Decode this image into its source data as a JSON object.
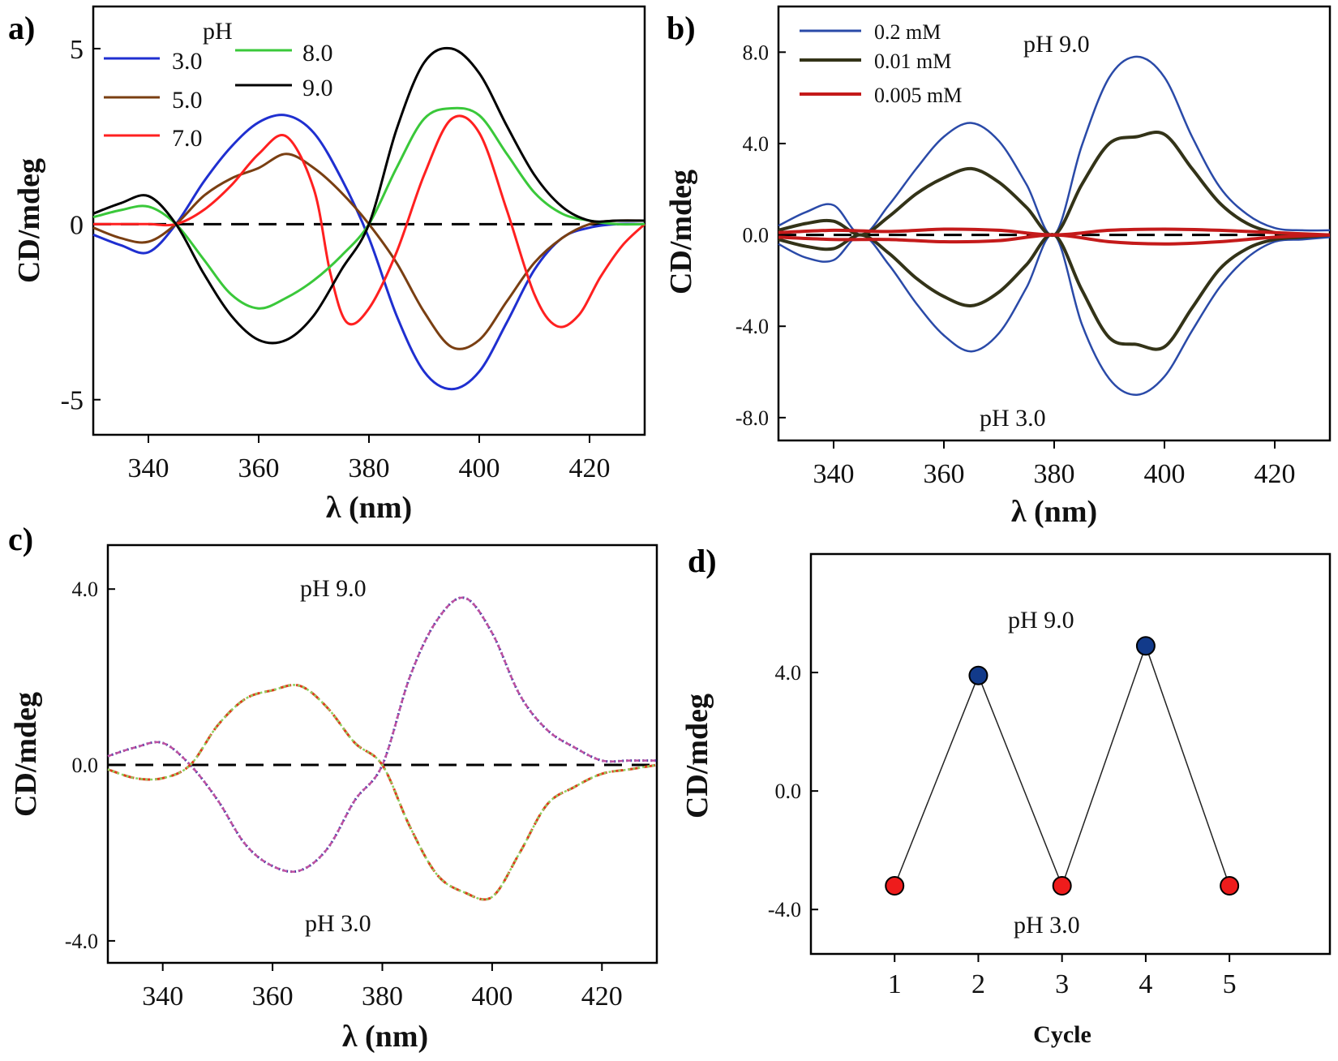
{
  "chart_data": [
    {
      "panel": "a)",
      "type": "line",
      "xlabel": "λ (nm)",
      "ylabel": "CD/mdeg",
      "xlim": [
        330,
        430
      ],
      "ylim": [
        -6,
        6.2
      ],
      "xticks": [
        340,
        360,
        380,
        400,
        420
      ],
      "yticks": [
        {
          "value": 5,
          "label": "5"
        },
        {
          "value": 0,
          "label": "0"
        },
        {
          "value": -5,
          "label": "-5"
        }
      ],
      "legend_title": "pH",
      "zero_line": true,
      "series": [
        {
          "name": "3.0",
          "color": "#1f2fd0",
          "width": 3,
          "x": [
            330,
            335,
            340,
            345,
            350,
            355,
            360,
            365,
            370,
            375,
            380,
            385,
            390,
            395,
            400,
            405,
            410,
            415,
            420,
            425,
            430
          ],
          "y": [
            -0.3,
            -0.6,
            -0.8,
            0,
            1.2,
            2.2,
            2.9,
            3.1,
            2.6,
            1.3,
            -0.4,
            -2.6,
            -4.2,
            -4.7,
            -4.2,
            -2.8,
            -1.3,
            -0.4,
            -0.1,
            0,
            0
          ]
        },
        {
          "name": "5.0",
          "color": "#7a3f12",
          "width": 3,
          "x": [
            330,
            335,
            340,
            345,
            350,
            355,
            360,
            365,
            370,
            375,
            380,
            385,
            390,
            395,
            400,
            405,
            410,
            415,
            420,
            425,
            430
          ],
          "y": [
            -0.1,
            -0.4,
            -0.5,
            0,
            0.8,
            1.3,
            1.6,
            2.0,
            1.6,
            0.9,
            0,
            -1.1,
            -2.5,
            -3.5,
            -3.3,
            -2.2,
            -1.1,
            -0.4,
            0,
            0.1,
            0.1
          ]
        },
        {
          "name": "7.0",
          "color": "#ff2020",
          "width": 3,
          "x": [
            330,
            335,
            340,
            345,
            350,
            355,
            360,
            365,
            370,
            373,
            376,
            380,
            385,
            390,
            395,
            400,
            405,
            410,
            414,
            418,
            422,
            426,
            430
          ],
          "y": [
            0,
            0,
            0,
            0,
            0.4,
            1.1,
            2.0,
            2.5,
            1.0,
            -1.4,
            -2.8,
            -2.4,
            -0.8,
            1.4,
            3.0,
            2.6,
            0.4,
            -2.0,
            -2.9,
            -2.6,
            -1.5,
            -0.6,
            0
          ]
        },
        {
          "name": "8.0",
          "color": "#3ac83a",
          "width": 3,
          "x": [
            330,
            335,
            340,
            345,
            350,
            355,
            360,
            365,
            370,
            375,
            380,
            385,
            390,
            395,
            400,
            405,
            410,
            415,
            420,
            425,
            430
          ],
          "y": [
            0.2,
            0.4,
            0.5,
            0,
            -1.0,
            -2.0,
            -2.4,
            -2.1,
            -1.6,
            -0.9,
            0,
            1.6,
            3.0,
            3.3,
            3.1,
            2.0,
            0.9,
            0.3,
            0.1,
            0,
            0
          ]
        },
        {
          "name": "9.0",
          "color": "#000000",
          "width": 3,
          "x": [
            330,
            335,
            340,
            345,
            350,
            355,
            360,
            365,
            370,
            375,
            380,
            385,
            390,
            395,
            400,
            405,
            410,
            415,
            420,
            425,
            430
          ],
          "y": [
            0.3,
            0.6,
            0.8,
            0,
            -1.4,
            -2.6,
            -3.3,
            -3.3,
            -2.6,
            -1.3,
            0,
            2.7,
            4.6,
            5.0,
            4.3,
            2.8,
            1.4,
            0.5,
            0.1,
            0.1,
            0.1
          ]
        }
      ]
    },
    {
      "panel": "b)",
      "type": "line",
      "xlabel": "λ (nm)",
      "ylabel": "CD/mdeg",
      "xlim": [
        330,
        430
      ],
      "ylim": [
        -9,
        10
      ],
      "xticks": [
        340,
        360,
        380,
        400,
        420
      ],
      "yticks": [
        {
          "value": 8,
          "label": "8.0"
        },
        {
          "value": 4,
          "label": "4.0"
        },
        {
          "value": 0,
          "label": "0.0"
        },
        {
          "value": -4,
          "label": "-4.0"
        },
        {
          "value": -8,
          "label": "-8.0"
        }
      ],
      "annotations": [
        "pH 9.0",
        "pH 3.0"
      ],
      "zero_line": true,
      "series": [
        {
          "name": "0.2 mM",
          "color": "#2a4aa8",
          "width": 2.5,
          "x": [
            330,
            335,
            340,
            345,
            350,
            355,
            360,
            365,
            370,
            375,
            380,
            385,
            390,
            395,
            400,
            405,
            410,
            415,
            420,
            425,
            430
          ],
          "y": [
            0.4,
            1.0,
            1.3,
            0,
            1.3,
            2.9,
            4.3,
            4.9,
            4.1,
            2.2,
            0,
            3.9,
            6.9,
            7.8,
            6.9,
            4.3,
            2.1,
            0.9,
            0.3,
            0.2,
            0.2
          ]
        },
        {
          "name": "0.2 mM",
          "color": "#2a4aa8",
          "width": 2.5,
          "x": [
            330,
            335,
            340,
            345,
            350,
            355,
            360,
            365,
            370,
            375,
            380,
            385,
            390,
            395,
            400,
            405,
            410,
            415,
            420,
            425,
            430
          ],
          "y": [
            -0.4,
            -1.0,
            -1.1,
            0,
            -1.3,
            -3.0,
            -4.4,
            -5.1,
            -4.3,
            -2.3,
            0,
            -3.9,
            -6.3,
            -7.0,
            -6.2,
            -4.2,
            -2.3,
            -1.0,
            -0.3,
            -0.2,
            -0.1
          ]
        },
        {
          "name": "0.01 mM",
          "color": "#333318",
          "width": 4,
          "x": [
            330,
            335,
            340,
            345,
            350,
            355,
            360,
            365,
            370,
            375,
            380,
            385,
            390,
            395,
            400,
            405,
            410,
            415,
            420,
            425,
            430
          ],
          "y": [
            0.2,
            0.5,
            0.6,
            0,
            0.8,
            1.8,
            2.5,
            2.9,
            2.3,
            1.2,
            0,
            2.2,
            4.0,
            4.3,
            4.4,
            2.9,
            1.4,
            0.5,
            0.1,
            0,
            0
          ]
        },
        {
          "name": "0.01 mM",
          "color": "#333318",
          "width": 4,
          "x": [
            330,
            335,
            340,
            345,
            350,
            355,
            360,
            365,
            370,
            375,
            380,
            385,
            390,
            395,
            400,
            405,
            410,
            415,
            420,
            425,
            430
          ],
          "y": [
            -0.2,
            -0.5,
            -0.6,
            0,
            -0.8,
            -1.9,
            -2.7,
            -3.1,
            -2.5,
            -1.3,
            0,
            -2.4,
            -4.5,
            -4.8,
            -4.9,
            -3.2,
            -1.5,
            -0.6,
            -0.2,
            -0.1,
            0
          ]
        },
        {
          "name": "0.005 mM",
          "color": "#c41a1a",
          "width": 4,
          "x": [
            330,
            340,
            350,
            360,
            370,
            380,
            390,
            400,
            410,
            420,
            430
          ],
          "y": [
            0.1,
            0.2,
            0.15,
            0.25,
            0.2,
            0,
            0.2,
            0.25,
            0.2,
            0.1,
            0
          ]
        },
        {
          "name": "0.005 mM",
          "color": "#c41a1a",
          "width": 4,
          "x": [
            330,
            340,
            350,
            360,
            370,
            380,
            390,
            400,
            410,
            420,
            430
          ],
          "y": [
            -0.1,
            -0.2,
            -0.2,
            -0.3,
            -0.25,
            0,
            -0.3,
            -0.4,
            -0.3,
            -0.1,
            0
          ]
        }
      ]
    },
    {
      "panel": "c)",
      "type": "line",
      "xlabel": "λ (nm)",
      "ylabel": "CD/mdeg",
      "xlim": [
        330,
        430
      ],
      "ylim": [
        -4.5,
        5.0
      ],
      "xticks": [
        340,
        360,
        380,
        400,
        420
      ],
      "yticks": [
        {
          "value": 4,
          "label": "4.0"
        },
        {
          "value": 0,
          "label": "0.0"
        },
        {
          "value": -4,
          "label": "-4.0"
        }
      ],
      "annotations": [
        "pH 9.0",
        "pH 3.0"
      ],
      "zero_line": true,
      "series": [
        {
          "color": "#2b3aa8",
          "width": 3,
          "dash": "2 3",
          "x": [
            330,
            335,
            340,
            345,
            350,
            355,
            360,
            365,
            370,
            375,
            380,
            385,
            390,
            395,
            400,
            405,
            410,
            415,
            420,
            425,
            430
          ],
          "y": [
            0.2,
            0.4,
            0.5,
            0,
            -0.8,
            -1.8,
            -2.3,
            -2.4,
            -1.9,
            -0.8,
            0,
            2.0,
            3.3,
            3.8,
            3.0,
            1.6,
            0.8,
            0.4,
            0.1,
            0.1,
            0.1
          ]
        },
        {
          "color": "#c050a0",
          "width": 2.5,
          "dash": "6 4",
          "x": [
            330,
            335,
            340,
            345,
            350,
            355,
            360,
            365,
            370,
            375,
            380,
            385,
            390,
            395,
            400,
            405,
            410,
            415,
            420,
            425,
            430
          ],
          "y": [
            0.2,
            0.4,
            0.5,
            0,
            -0.8,
            -1.8,
            -2.3,
            -2.4,
            -1.9,
            -0.8,
            0,
            2.0,
            3.3,
            3.8,
            3.0,
            1.6,
            0.8,
            0.4,
            0.1,
            0.1,
            0.1
          ]
        },
        {
          "color": "#e03a1a",
          "width": 3,
          "dash": "14 6",
          "x": [
            330,
            335,
            340,
            345,
            350,
            355,
            360,
            365,
            370,
            375,
            380,
            385,
            390,
            395,
            400,
            405,
            410,
            415,
            420,
            425,
            430
          ],
          "y": [
            -0.1,
            -0.3,
            -0.3,
            0,
            0.9,
            1.5,
            1.7,
            1.8,
            1.3,
            0.5,
            0,
            -1.4,
            -2.5,
            -2.9,
            -3.0,
            -2.0,
            -0.9,
            -0.5,
            -0.2,
            -0.1,
            0
          ]
        },
        {
          "color": "#8fd060",
          "width": 2.5,
          "dash": "3 3",
          "x": [
            330,
            335,
            340,
            345,
            350,
            355,
            360,
            365,
            370,
            375,
            380,
            385,
            390,
            395,
            400,
            405,
            410,
            415,
            420,
            425,
            430
          ],
          "y": [
            -0.1,
            -0.3,
            -0.3,
            0,
            0.9,
            1.5,
            1.7,
            1.8,
            1.3,
            0.5,
            0,
            -1.4,
            -2.5,
            -2.9,
            -3.0,
            -2.0,
            -0.9,
            -0.5,
            -0.2,
            -0.1,
            0
          ]
        }
      ]
    },
    {
      "panel": "d)",
      "type": "scatter",
      "xlabel": "Cycle",
      "ylabel": "CD/mdeg",
      "xlim": [
        0.0,
        6.2
      ],
      "ylim": [
        -5.5,
        8.0
      ],
      "xticks": [
        1,
        2,
        3,
        4,
        5
      ],
      "yticks": [
        {
          "value": 4,
          "label": "4.0"
        },
        {
          "value": 0,
          "label": "0.0"
        },
        {
          "value": -4,
          "label": "-4.0"
        }
      ],
      "annotations": [
        "pH 9.0",
        "pH 3.0"
      ],
      "x": [
        1,
        2,
        3,
        4,
        5
      ],
      "y": [
        -3.2,
        3.9,
        -3.2,
        4.9,
        -3.2
      ],
      "point_colors": [
        "#ee1c1c",
        "#123a8a",
        "#ee1c1c",
        "#123a8a",
        "#ee1c1c"
      ]
    }
  ]
}
